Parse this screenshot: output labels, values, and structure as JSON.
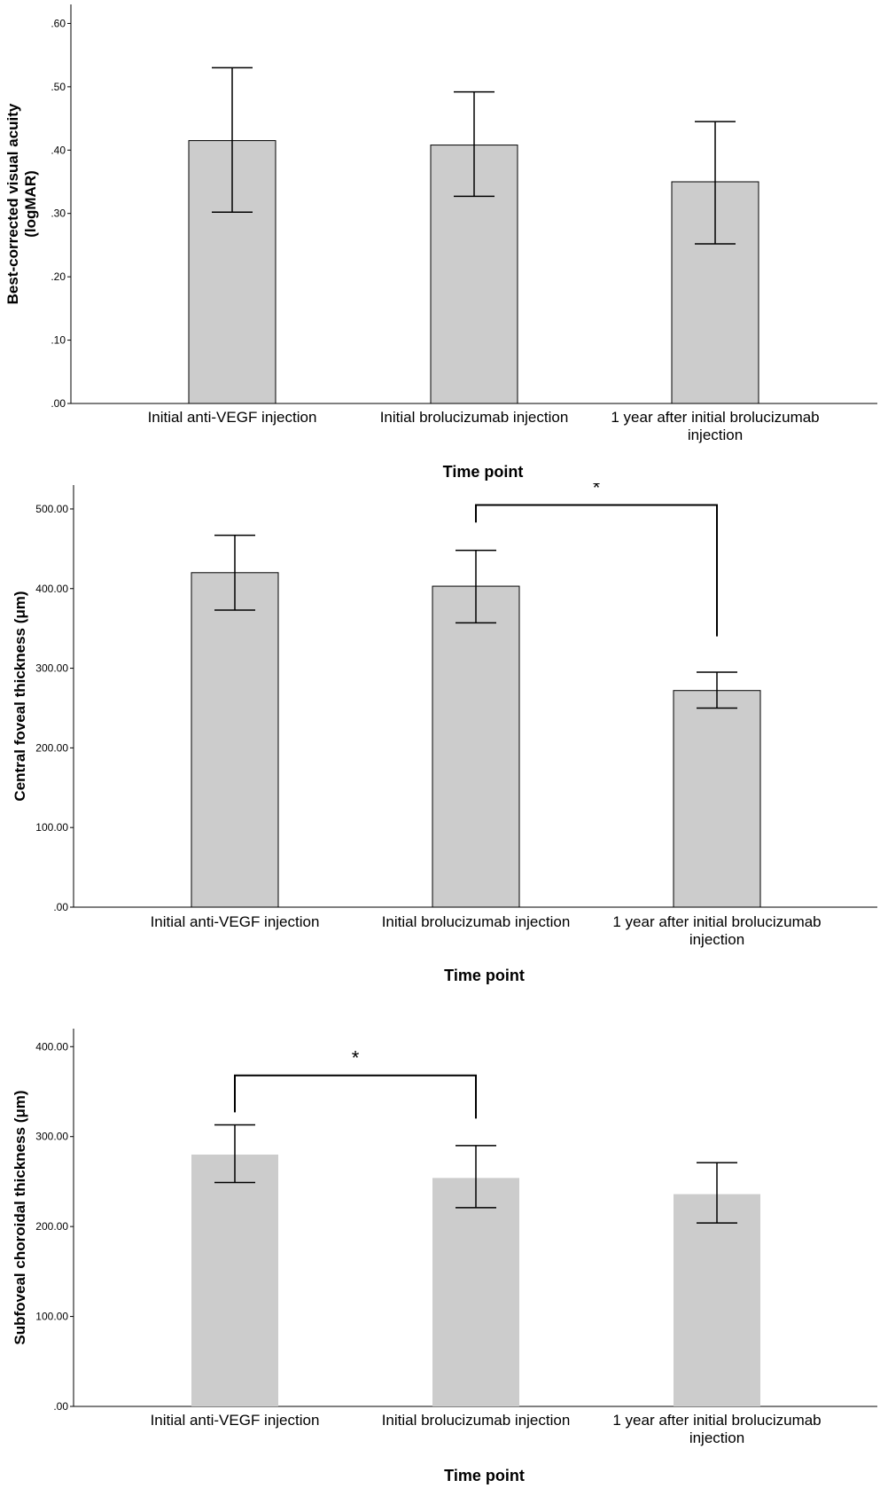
{
  "chart_data": [
    {
      "type": "bar",
      "title": "",
      "xlabel": "Time point",
      "ylabel_lines": [
        "Best-corrected visual acuity",
        "(logMAR)"
      ],
      "categories": [
        [
          "Initial anti-VEGF injection"
        ],
        [
          "Initial brolucizumab injection"
        ],
        [
          "1 year after initial brolucizumab",
          "injection"
        ]
      ],
      "values": [
        0.415,
        0.408,
        0.35
      ],
      "error_low": [
        0.302,
        0.327,
        0.252
      ],
      "error_high": [
        0.53,
        0.492,
        0.445
      ],
      "ylim": [
        0,
        0.63
      ],
      "yticks": [
        0,
        0.1,
        0.2,
        0.3,
        0.4,
        0.5,
        0.6
      ],
      "ytick_labels": [
        ".00",
        ".10",
        ".20",
        ".30",
        ".40",
        ".50",
        ".60"
      ],
      "bar_outline": true,
      "significance": []
    },
    {
      "type": "bar",
      "title": "",
      "xlabel": "Time point",
      "ylabel_lines": [
        "Central foveal thickness (μm)"
      ],
      "categories": [
        [
          "Initial anti-VEGF injection"
        ],
        [
          "Initial brolucizumab injection"
        ],
        [
          "1 year after initial brolucizumab",
          "injection"
        ]
      ],
      "values": [
        420,
        403,
        272
      ],
      "error_low": [
        373,
        357,
        250
      ],
      "error_high": [
        467,
        448,
        295
      ],
      "ylim": [
        0,
        530
      ],
      "yticks": [
        0,
        100,
        200,
        300,
        400,
        500
      ],
      "ytick_labels": [
        ".00",
        "100.00",
        "200.00",
        "300.00",
        "400.00",
        "500.00"
      ],
      "bar_outline": true,
      "significance": [
        {
          "from": 1,
          "to": 2,
          "label": "*",
          "bracket_value": 505,
          "left_end": 483,
          "right_end": 340
        }
      ]
    },
    {
      "type": "bar",
      "title": "",
      "xlabel": "Time point",
      "ylabel_lines": [
        "Subfoveal choroidal thickness (μm)"
      ],
      "categories": [
        [
          "Initial anti-VEGF injection"
        ],
        [
          "Initial brolucizumab injection"
        ],
        [
          "1 year after initial brolucizumab",
          "injection"
        ]
      ],
      "values": [
        280,
        254,
        236
      ],
      "error_low": [
        249,
        221,
        204
      ],
      "error_high": [
        313,
        290,
        271
      ],
      "ylim": [
        0,
        420
      ],
      "yticks": [
        0,
        100,
        200,
        300,
        400
      ],
      "ytick_labels": [
        ".00",
        "100.00",
        "200.00",
        "300.00",
        "400.00"
      ],
      "bar_outline": false,
      "significance": [
        {
          "from": 0,
          "to": 1,
          "label": "*",
          "bracket_value": 368,
          "left_end": 327,
          "right_end": 320
        }
      ]
    }
  ],
  "colors": {
    "bar": "#cccccc",
    "bar_edge": "#000000",
    "axis": "#000000"
  }
}
